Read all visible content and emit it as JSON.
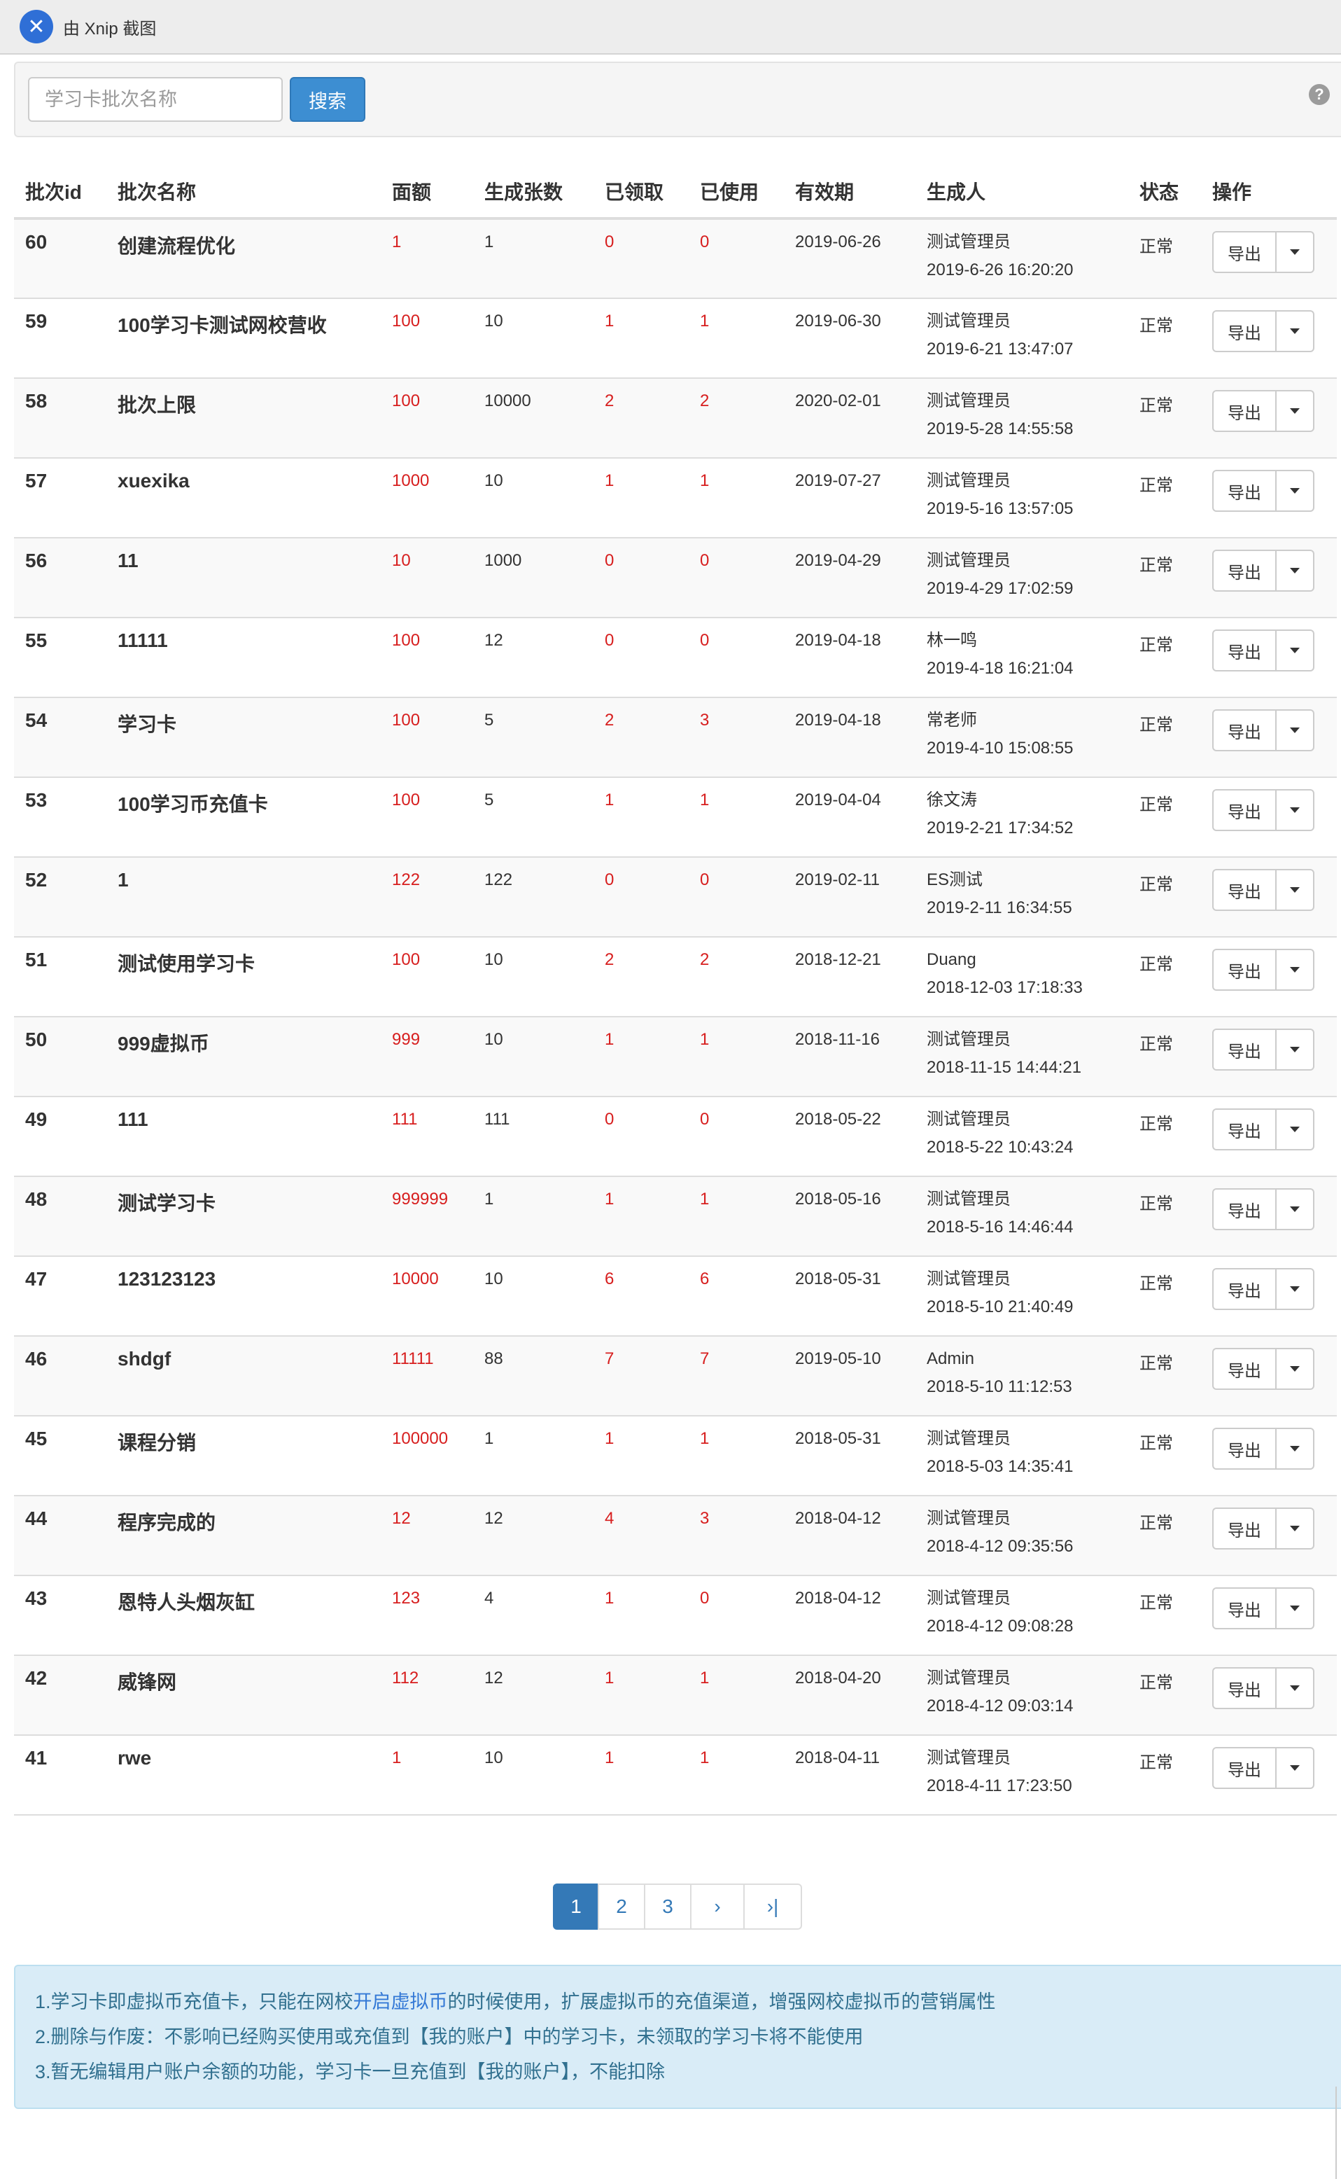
{
  "window": {
    "title": "由 Xnip 截图",
    "logo_glyph": "✕"
  },
  "search": {
    "placeholder": "学习卡批次名称",
    "button": "搜索",
    "help_glyph": "?"
  },
  "table": {
    "headers": [
      "批次id",
      "批次名称",
      "面额",
      "生成张数",
      "已领取",
      "已使用",
      "有效期",
      "生成人",
      "状态",
      "操作"
    ],
    "rows": [
      {
        "id": "60",
        "name": "创建流程优化",
        "face": "1",
        "count": "1",
        "received": "0",
        "used": "0",
        "expiry": "2019-06-26",
        "creator": "测试管理员",
        "created": "2019-6-26 16:20:20",
        "status": "正常",
        "action": "导出"
      },
      {
        "id": "59",
        "name": "100学习卡测试网校营收",
        "face": "100",
        "count": "10",
        "received": "1",
        "used": "1",
        "expiry": "2019-06-30",
        "creator": "测试管理员",
        "created": "2019-6-21 13:47:07",
        "status": "正常",
        "action": "导出"
      },
      {
        "id": "58",
        "name": "批次上限",
        "face": "100",
        "count": "10000",
        "received": "2",
        "used": "2",
        "expiry": "2020-02-01",
        "creator": "测试管理员",
        "created": "2019-5-28 14:55:58",
        "status": "正常",
        "action": "导出"
      },
      {
        "id": "57",
        "name": "xuexika",
        "face": "1000",
        "count": "10",
        "received": "1",
        "used": "1",
        "expiry": "2019-07-27",
        "creator": "测试管理员",
        "created": "2019-5-16 13:57:05",
        "status": "正常",
        "action": "导出"
      },
      {
        "id": "56",
        "name": "11",
        "face": "10",
        "count": "1000",
        "received": "0",
        "used": "0",
        "expiry": "2019-04-29",
        "creator": "测试管理员",
        "created": "2019-4-29 17:02:59",
        "status": "正常",
        "action": "导出"
      },
      {
        "id": "55",
        "name": "11111",
        "face": "100",
        "count": "12",
        "received": "0",
        "used": "0",
        "expiry": "2019-04-18",
        "creator": "林一鸣",
        "created": "2019-4-18 16:21:04",
        "status": "正常",
        "action": "导出"
      },
      {
        "id": "54",
        "name": "学习卡",
        "face": "100",
        "count": "5",
        "received": "2",
        "used": "3",
        "expiry": "2019-04-18",
        "creator": "常老师",
        "created": "2019-4-10 15:08:55",
        "status": "正常",
        "action": "导出"
      },
      {
        "id": "53",
        "name": "100学习币充值卡",
        "face": "100",
        "count": "5",
        "received": "1",
        "used": "1",
        "expiry": "2019-04-04",
        "creator": "徐文涛",
        "created": "2019-2-21 17:34:52",
        "status": "正常",
        "action": "导出"
      },
      {
        "id": "52",
        "name": "1",
        "face": "122",
        "count": "122",
        "received": "0",
        "used": "0",
        "expiry": "2019-02-11",
        "creator": "ES测试",
        "created": "2019-2-11 16:34:55",
        "status": "正常",
        "action": "导出"
      },
      {
        "id": "51",
        "name": "测试使用学习卡",
        "face": "100",
        "count": "10",
        "received": "2",
        "used": "2",
        "expiry": "2018-12-21",
        "creator": "Duang",
        "created": "2018-12-03 17:18:33",
        "status": "正常",
        "action": "导出"
      },
      {
        "id": "50",
        "name": "999虚拟币",
        "face": "999",
        "count": "10",
        "received": "1",
        "used": "1",
        "expiry": "2018-11-16",
        "creator": "测试管理员",
        "created": "2018-11-15 14:44:21",
        "status": "正常",
        "action": "导出"
      },
      {
        "id": "49",
        "name": "111",
        "face": "111",
        "count": "111",
        "received": "0",
        "used": "0",
        "expiry": "2018-05-22",
        "creator": "测试管理员",
        "created": "2018-5-22 10:43:24",
        "status": "正常",
        "action": "导出"
      },
      {
        "id": "48",
        "name": "测试学习卡",
        "face": "999999",
        "count": "1",
        "received": "1",
        "used": "1",
        "expiry": "2018-05-16",
        "creator": "测试管理员",
        "created": "2018-5-16 14:46:44",
        "status": "正常",
        "action": "导出"
      },
      {
        "id": "47",
        "name": "123123123",
        "face": "10000",
        "count": "10",
        "received": "6",
        "used": "6",
        "expiry": "2018-05-31",
        "creator": "测试管理员",
        "created": "2018-5-10 21:40:49",
        "status": "正常",
        "action": "导出"
      },
      {
        "id": "46",
        "name": "shdgf",
        "face": "11111",
        "count": "88",
        "received": "7",
        "used": "7",
        "expiry": "2019-05-10",
        "creator": "Admin",
        "created": "2018-5-10 11:12:53",
        "status": "正常",
        "action": "导出"
      },
      {
        "id": "45",
        "name": "课程分销",
        "face": "100000",
        "count": "1",
        "received": "1",
        "used": "1",
        "expiry": "2018-05-31",
        "creator": "测试管理员",
        "created": "2018-5-03 14:35:41",
        "status": "正常",
        "action": "导出"
      },
      {
        "id": "44",
        "name": "程序完成的",
        "face": "12",
        "count": "12",
        "received": "4",
        "used": "3",
        "expiry": "2018-04-12",
        "creator": "测试管理员",
        "created": "2018-4-12 09:35:56",
        "status": "正常",
        "action": "导出"
      },
      {
        "id": "43",
        "name": "恩特人头烟灰缸",
        "face": "123",
        "count": "4",
        "received": "1",
        "used": "0",
        "expiry": "2018-04-12",
        "creator": "测试管理员",
        "created": "2018-4-12 09:08:28",
        "status": "正常",
        "action": "导出"
      },
      {
        "id": "42",
        "name": "威锋网",
        "face": "112",
        "count": "12",
        "received": "1",
        "used": "1",
        "expiry": "2018-04-20",
        "creator": "测试管理员",
        "created": "2018-4-12 09:03:14",
        "status": "正常",
        "action": "导出"
      },
      {
        "id": "41",
        "name": "rwe",
        "face": "1",
        "count": "10",
        "received": "1",
        "used": "1",
        "expiry": "2018-04-11",
        "creator": "测试管理员",
        "created": "2018-4-11 17:23:50",
        "status": "正常",
        "action": "导出"
      }
    ]
  },
  "pagination": {
    "pages": [
      "1",
      "2",
      "3"
    ],
    "current": "1",
    "next": "›",
    "last": "›|"
  },
  "notes": {
    "line1_a": "1.学习卡即虚拟币充值卡，只能在网校",
    "line1_link": "开启虚拟币",
    "line1_b": "的时候使用，扩展虚拟币的充值渠道，增强网校虚拟币的营销属性",
    "line2": "2.删除与作废：不影响已经购买使用或充值到【我的账户】中的学习卡，未领取的学习卡将不能使用",
    "line3": "3.暂无编辑用户账户余额的功能，学习卡一旦充值到【我的账户】，不能扣除"
  },
  "colors": {
    "primary": "#3d8ed2",
    "red": "#d71e1e",
    "info_bg": "#d9ecf7",
    "info_text": "#31708f"
  }
}
